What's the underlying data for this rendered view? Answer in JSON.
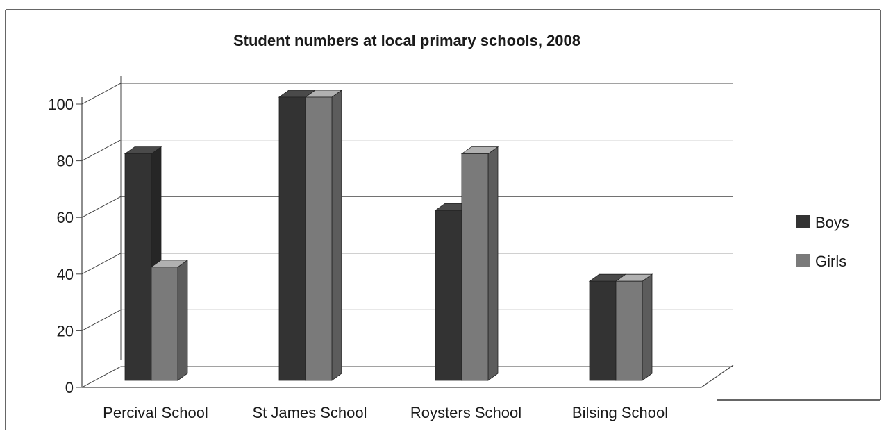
{
  "chart_data": {
    "type": "bar",
    "title": "Student numbers at local primary schools, 2008",
    "categories": [
      "Percival School",
      "St James School",
      "Roysters School",
      "Bilsing School"
    ],
    "series": [
      {
        "name": "Boys",
        "values": [
          80,
          100,
          60,
          35
        ],
        "color": "#333333"
      },
      {
        "name": "Girls",
        "values": [
          40,
          100,
          80,
          35
        ],
        "color": "#7a7a7a"
      }
    ],
    "yticks": [
      0,
      20,
      40,
      60,
      80,
      100
    ],
    "ylim": [
      0,
      100
    ],
    "xlabel": "",
    "ylabel": "",
    "grid": true,
    "legend_position": "right",
    "style": "3d"
  }
}
